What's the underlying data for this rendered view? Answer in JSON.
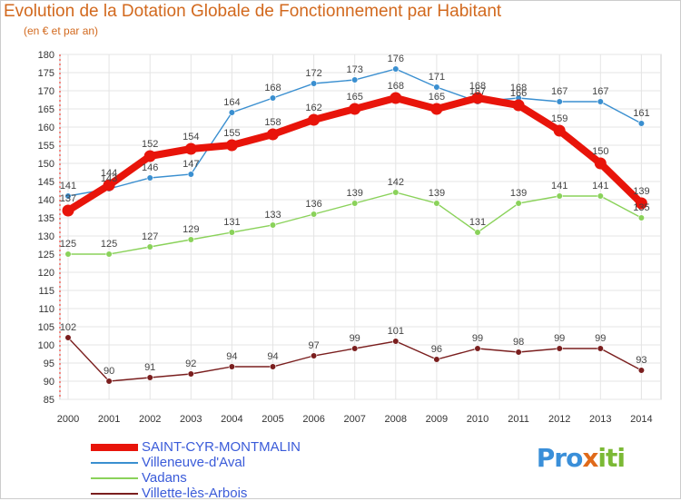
{
  "title": "Evolution de la Dotation Globale de Fonctionnement par Habitant",
  "subtitle": "(en € et par an)",
  "logo": {
    "text_a": "Pro",
    "text_b": "x",
    "text_c": "iti"
  },
  "chart_data": {
    "type": "line",
    "title": "Evolution de la Dotation Globale de Fonctionnement par Habitant",
    "subtitle": "(en € et par an)",
    "x": [
      2000,
      2001,
      2002,
      2003,
      2004,
      2005,
      2006,
      2007,
      2008,
      2009,
      2010,
      2011,
      2012,
      2013,
      2014
    ],
    "ylim": [
      85,
      180
    ],
    "ytick_step": 5,
    "grid": true,
    "legend_position": "bottom",
    "series": [
      {
        "name": "SAINT-CYR-MONTMALIN",
        "color": "#e8140a",
        "emphasis": true,
        "values": [
          137,
          144,
          152,
          154,
          155,
          158,
          162,
          165,
          168,
          165,
          168,
          166,
          159,
          150,
          139
        ]
      },
      {
        "name": "Villeneuve-d'Aval",
        "color": "#3a8fd0",
        "values": [
          141,
          143,
          146,
          147,
          164,
          168,
          172,
          173,
          176,
          171,
          167,
          168,
          167,
          167,
          161
        ]
      },
      {
        "name": "Vadans",
        "color": "#8ad25a",
        "values": [
          125,
          125,
          127,
          129,
          131,
          133,
          136,
          139,
          142,
          139,
          131,
          139,
          141,
          141,
          135
        ]
      },
      {
        "name": "Villette-lès-Arbois",
        "color": "#7a1e1e",
        "values": [
          102,
          90,
          91,
          92,
          94,
          94,
          97,
          99,
          101,
          96,
          99,
          98,
          99,
          99,
          93
        ]
      }
    ]
  }
}
